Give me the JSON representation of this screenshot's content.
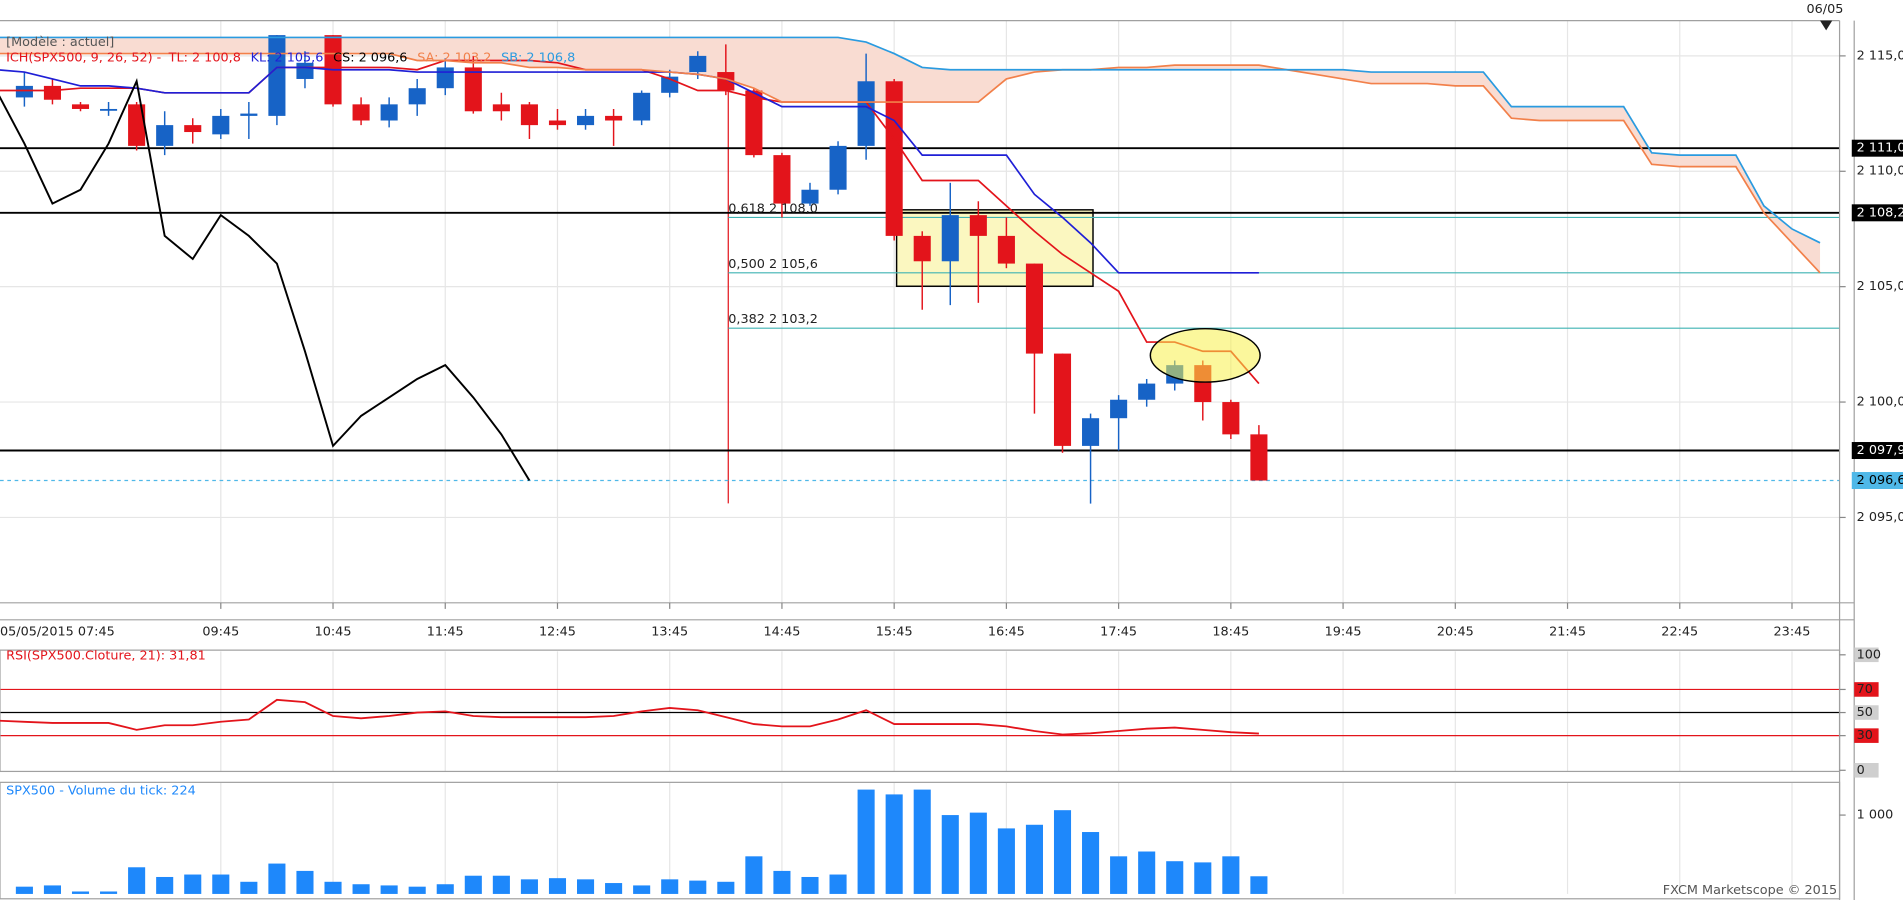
{
  "chart_data": [
    {
      "type": "candlestick",
      "title": "[Modèle : actuel]",
      "indicator": "ICH(SPX500, 9, 26, 52) -",
      "top_label": "06/05",
      "credit": "FXCM Marketscope © 2015",
      "categories": [
        "05/05/2015 07:45",
        null,
        null,
        null,
        null,
        null,
        null,
        null,
        "09:45",
        null,
        null,
        null,
        "10:45",
        null,
        null,
        null,
        "11:45",
        null,
        null,
        null,
        "12:45",
        null,
        null,
        null,
        "13:45",
        null,
        null,
        null,
        "14:45",
        null,
        null,
        null,
        "15:45",
        null,
        null,
        null,
        "16:45",
        null,
        null,
        null,
        "17:45",
        null,
        null,
        null,
        "18:45",
        null,
        null,
        null,
        "19:45",
        null,
        null,
        null,
        "20:45",
        null,
        null,
        null,
        "21:45",
        null,
        null,
        null,
        "22:45",
        null,
        null,
        null,
        "23:45",
        null
      ],
      "open": [
        null,
        2113.2,
        2113.7,
        2112.9,
        2112.7,
        2112.9,
        2111.1,
        2112.0,
        2111.6,
        2112.4,
        2112.4,
        2114.0,
        2115.9,
        2112.9,
        2112.2,
        2112.9,
        2113.6,
        2114.5,
        2112.9,
        2112.9,
        2112.2,
        2112.0,
        2112.4,
        2112.2,
        2113.4,
        2114.3,
        2114.3,
        2113.5,
        2110.7,
        2108.6,
        2109.2,
        2111.1,
        2113.9,
        2107.2,
        2106.1,
        2108.1,
        2107.2,
        2106.0,
        2102.1,
        2098.1,
        2099.3,
        2100.1,
        2100.8,
        2101.6,
        2100.0,
        2098.6,
        null,
        null,
        null,
        null,
        null,
        null,
        null,
        null,
        null,
        null,
        null,
        null,
        null,
        null,
        null,
        null,
        null,
        null,
        null,
        null
      ],
      "high": [
        null,
        2114.3,
        2114.0,
        2113.0,
        2113.0,
        2113.0,
        2112.6,
        2112.3,
        2112.7,
        2113.0,
        2115.9,
        2115.2,
        2115.9,
        2113.2,
        2113.2,
        2114.0,
        2114.9,
        2115.0,
        2113.4,
        2113.0,
        2112.7,
        2112.7,
        2112.7,
        2113.5,
        2114.4,
        2115.2,
        2115.5,
        2113.6,
        2110.8,
        2109.5,
        2111.3,
        2115.1,
        2114.0,
        2107.4,
        2109.5,
        2108.7,
        2108.0,
        2106.0,
        2102.1,
        2099.5,
        2100.3,
        2101.0,
        2101.8,
        2101.8,
        2100.1,
        2099.0,
        null,
        null,
        null,
        null,
        null,
        null,
        null,
        null,
        null,
        null,
        null,
        null,
        null,
        null,
        null,
        null,
        null,
        null,
        null,
        null
      ],
      "low": [
        null,
        2112.8,
        2112.9,
        2112.6,
        2112.4,
        2110.9,
        2110.7,
        2111.2,
        2111.4,
        2111.4,
        2112.0,
        2113.6,
        2112.8,
        2112.0,
        2111.9,
        2112.4,
        2113.3,
        2112.5,
        2112.2,
        2111.4,
        2111.8,
        2111.8,
        2111.1,
        2112.0,
        2113.2,
        2114.0,
        2113.3,
        2110.6,
        2108.0,
        2108.5,
        2109.0,
        2110.5,
        2107.0,
        2104.0,
        2104.2,
        2104.3,
        2105.8,
        2099.5,
        2097.8,
        2095.6,
        2097.9,
        2099.8,
        2100.5,
        2099.2,
        2098.4,
        2096.6,
        null,
        null,
        null,
        null,
        null,
        null,
        null,
        null,
        null,
        null,
        null,
        null,
        null,
        null,
        null,
        null,
        null,
        null,
        null,
        null
      ],
      "close": [
        null,
        2113.7,
        2113.1,
        2112.7,
        2112.7,
        2111.1,
        2112.0,
        2111.7,
        2112.4,
        2112.5,
        2115.9,
        2114.7,
        2112.9,
        2112.2,
        2112.9,
        2113.6,
        2114.5,
        2112.6,
        2112.6,
        2112.0,
        2112.0,
        2112.4,
        2112.2,
        2113.4,
        2114.1,
        2115.0,
        2113.5,
        2110.7,
        2108.6,
        2109.2,
        2111.1,
        2113.9,
        2107.2,
        2106.1,
        2108.1,
        2107.2,
        2106.0,
        2102.1,
        2098.1,
        2099.3,
        2100.1,
        2100.8,
        2101.6,
        2100.0,
        2098.6,
        2096.6,
        null,
        null,
        null,
        null,
        null,
        null,
        null,
        null,
        null,
        null,
        null,
        null,
        null,
        null,
        null,
        null,
        null,
        null,
        null,
        null
      ],
      "up_color": "#1763c6",
      "down_color": "#e3141b",
      "series": [
        {
          "name": "TL: 2 100,8",
          "color": "#e3141b",
          "values": [
            2113.5,
            2113.5,
            2113.5,
            2113.6,
            2113.6,
            2113.6,
            2113.4,
            2113.4,
            2113.4,
            2113.4,
            2114.5,
            2114.5,
            2114.5,
            2114.5,
            2114.5,
            2114.4,
            2114.8,
            2114.8,
            2114.8,
            2114.8,
            2114.7,
            2114.4,
            2114.4,
            2114.4,
            2114.0,
            2113.5,
            2113.5,
            2113.2,
            2113.0,
            2113.0,
            2113.0,
            2113.0,
            2111.4,
            2109.6,
            2109.6,
            2109.6,
            2108.5,
            2107.4,
            2106.4,
            2105.6,
            2104.8,
            2102.6,
            2102.6,
            2102.2,
            2102.2,
            2100.8,
            null,
            null,
            null,
            null,
            null,
            null,
            null,
            null,
            null,
            null,
            null,
            null,
            null,
            null,
            null,
            null,
            null,
            null,
            null,
            null
          ]
        },
        {
          "name": "KL: 2 105,6",
          "color": "#1f1fd6",
          "values": [
            2114.4,
            2114.3,
            2114.0,
            2113.7,
            2113.7,
            2113.6,
            2113.4,
            2113.4,
            2113.4,
            2113.4,
            2114.5,
            2114.5,
            2114.4,
            2114.4,
            2114.4,
            2114.3,
            2114.3,
            2114.3,
            2114.3,
            2114.3,
            2114.3,
            2114.3,
            2114.3,
            2114.3,
            2114.3,
            2114.2,
            2114.0,
            2113.4,
            2112.8,
            2112.8,
            2112.8,
            2112.8,
            2112.2,
            2110.7,
            2110.7,
            2110.7,
            2110.7,
            2109.0,
            2108.0,
            2106.9,
            2105.6,
            2105.6,
            2105.6,
            2105.6,
            2105.6,
            2105.6,
            null,
            null,
            null,
            null,
            null,
            null,
            null,
            null,
            null,
            null,
            null,
            null,
            null,
            null,
            null,
            null,
            null,
            null,
            null,
            null
          ]
        },
        {
          "name": "CS: 2 096,6",
          "color": "#000000",
          "values": [
            2113.5,
            2111.2,
            2108.6,
            2109.2,
            2111.2,
            2113.9,
            2107.2,
            2106.2,
            2108.1,
            2107.2,
            2106.0,
            2102.2,
            2098.1,
            2099.4,
            2100.2,
            2101.0,
            2101.6,
            2100.2,
            2098.6,
            2096.6,
            null,
            null,
            null,
            null,
            null,
            null,
            null,
            null,
            null,
            null,
            null,
            null,
            null,
            null,
            null,
            null,
            null,
            null,
            null,
            null,
            null,
            null,
            null,
            null,
            null,
            null,
            null,
            null,
            null,
            null,
            null,
            null,
            null,
            null,
            null,
            null,
            null,
            null,
            null,
            null,
            null,
            null,
            null,
            null,
            null,
            null
          ]
        },
        {
          "name": "SA: 2 103,2",
          "color": "#f2804a",
          "values": [
            2115.1,
            2115.1,
            2115.1,
            2115.1,
            2115.1,
            2115.1,
            2115.1,
            2115.1,
            2115.1,
            2115.1,
            2115.1,
            2115.1,
            2115.1,
            2115.1,
            2115.1,
            2114.8,
            2114.8,
            2114.7,
            2114.7,
            2114.5,
            2114.5,
            2114.4,
            2114.4,
            2114.4,
            2114.3,
            2114.2,
            2114.0,
            2113.6,
            2113.0,
            2113.0,
            2113.0,
            2113.0,
            2113.0,
            2113.0,
            2113.0,
            2113.0,
            2114.0,
            2114.3,
            2114.4,
            2114.4,
            2114.5,
            2114.5,
            2114.6,
            2114.6,
            2114.6,
            2114.6,
            2114.4,
            2114.2,
            2114.0,
            2113.8,
            2113.8,
            2113.8,
            2113.7,
            2113.7,
            2112.3,
            2112.2,
            2112.2,
            2112.2,
            2112.2,
            2110.3,
            2110.2,
            2110.2,
            2110.2,
            2108.2,
            2106.9,
            2105.6
          ]
        },
        {
          "name": "SB: 2 106,8",
          "color": "#2a9be0",
          "values": [
            2115.8,
            2115.8,
            2115.8,
            2115.8,
            2115.8,
            2115.8,
            2115.8,
            2115.8,
            2115.8,
            2115.8,
            2115.8,
            2115.8,
            2115.8,
            2115.8,
            2115.8,
            2115.8,
            2115.8,
            2115.8,
            2115.8,
            2115.8,
            2115.8,
            2115.8,
            2115.8,
            2115.8,
            2115.8,
            2115.8,
            2115.8,
            2115.8,
            2115.8,
            2115.8,
            2115.8,
            2115.6,
            2115.1,
            2114.5,
            2114.4,
            2114.4,
            2114.4,
            2114.4,
            2114.4,
            2114.4,
            2114.4,
            2114.4,
            2114.4,
            2114.4,
            2114.4,
            2114.4,
            2114.4,
            2114.4,
            2114.4,
            2114.3,
            2114.3,
            2114.3,
            2114.3,
            2114.3,
            2112.8,
            2112.8,
            2112.8,
            2112.8,
            2112.8,
            2110.8,
            2110.7,
            2110.7,
            2110.7,
            2108.5,
            2107.5,
            2106.9
          ]
        }
      ],
      "cloud_color": "#f9dcd2",
      "ylim": [
        2091.3,
        2115.95
      ],
      "yticks": [
        {
          "value": 2095,
          "label": "2 095,0"
        },
        {
          "value": 2100,
          "label": "2 100,0"
        },
        {
          "value": 2105,
          "label": "2 105,0"
        },
        {
          "value": 2110,
          "label": "2 110,0"
        },
        {
          "value": 2115,
          "label": "2 115,0"
        }
      ],
      "grid": true,
      "levels": [
        {
          "value": 2111.0,
          "label": "2 111,0",
          "color": "#000000"
        },
        {
          "value": 2108.2,
          "label": "2 108,2",
          "color": "#000000"
        },
        {
          "value": 2097.9,
          "label": "2 097,9",
          "color": "#000000"
        },
        {
          "value": 2096.6,
          "label": "2 096,6",
          "color": "#4fb8e8"
        }
      ],
      "fib": [
        {
          "value": 2108.0,
          "label": "0,618 2 108,0"
        },
        {
          "value": 2105.6,
          "label": "0,500 2 105,6"
        },
        {
          "value": 2103.2,
          "label": "0,382 2 103,2"
        }
      ],
      "fib_color": "#3fb3b3"
    },
    {
      "type": "line",
      "title": "RSI(SPX500.Cloture, 21): 31,81",
      "series": [
        {
          "color": "#e3141b",
          "values": [
            43,
            42,
            41,
            41,
            41,
            35,
            39,
            39,
            42,
            44,
            61,
            59,
            47,
            45,
            47,
            50,
            51,
            47,
            46,
            46,
            46,
            46,
            47,
            51,
            54,
            52,
            46,
            40,
            38,
            38,
            44,
            52,
            40,
            40,
            40,
            40,
            38,
            34,
            31,
            32,
            34,
            36,
            37,
            35,
            33,
            31.81,
            null,
            null,
            null,
            null,
            null,
            null,
            null,
            null,
            null,
            null,
            null,
            null,
            null,
            null,
            null,
            null,
            null,
            null,
            null,
            null
          ]
        }
      ],
      "ylim": [
        -1,
        103
      ],
      "yticks": [
        0,
        30,
        50,
        70,
        100
      ],
      "levels": [
        {
          "value": 70,
          "color": "#e3141b"
        },
        {
          "value": 50,
          "color": "#000000"
        },
        {
          "value": 30,
          "color": "#e3141b"
        }
      ]
    },
    {
      "type": "bar",
      "title": "SPX500 - Volume du tick: 224",
      "color": "#1e88fb",
      "values": [
        null,
        92,
        108,
        31,
        31,
        338,
        215,
        246,
        246,
        154,
        385,
        292,
        154,
        123,
        108,
        92,
        123,
        231,
        231,
        185,
        200,
        185,
        138,
        108,
        185,
        169,
        154,
        477,
        292,
        215,
        246,
        1323,
        1262,
        1323,
        1000,
        1031,
        831,
        877,
        1062,
        785,
        477,
        538,
        415,
        400,
        477,
        224,
        null,
        null,
        null,
        null,
        null,
        null,
        null,
        null,
        null,
        null,
        null,
        null,
        null,
        null,
        null,
        null,
        null,
        null,
        null,
        null
      ],
      "ylim": [
        0,
        1415
      ],
      "yticks": [
        {
          "value": 1000,
          "label": "1 000"
        }
      ]
    }
  ]
}
